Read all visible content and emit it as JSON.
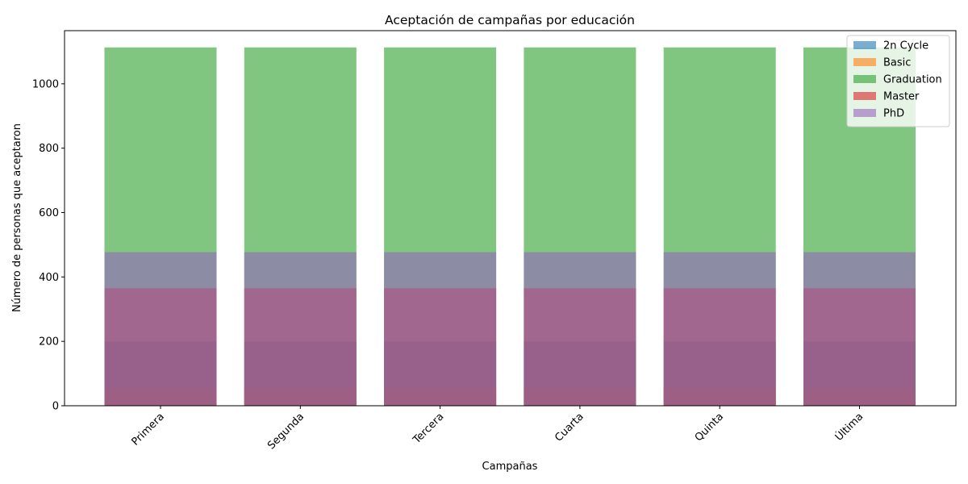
{
  "chart_data": {
    "type": "bar",
    "title": "Aceptación de campañas por educación",
    "xlabel": "Campañas",
    "ylabel": "Número de personas que aceptaron",
    "categories": [
      "Primera",
      "Segunda",
      "Tercera",
      "Cuarta",
      "Quinta",
      "Última"
    ],
    "ylim": [
      0,
      1165
    ],
    "yticks": [
      0,
      200,
      400,
      600,
      800,
      1000
    ],
    "grid": false,
    "legend_position": "top-right",
    "bar_mode": "overlay",
    "bar_opacity": 0.6,
    "series": [
      {
        "name": "2n Cycle",
        "color": "#1f77b4",
        "values": [
          200,
          200,
          200,
          200,
          200,
          200
        ]
      },
      {
        "name": "Basic",
        "color": "#ff7f0e",
        "values": [
          54,
          54,
          54,
          54,
          54,
          54
        ]
      },
      {
        "name": "Graduation",
        "color": "#2ca02c",
        "values": [
          1113,
          1113,
          1113,
          1113,
          1113,
          1113
        ]
      },
      {
        "name": "Master",
        "color": "#d62728",
        "values": [
          365,
          365,
          365,
          365,
          365,
          365
        ]
      },
      {
        "name": "PhD",
        "color": "#9467bd",
        "values": [
          477,
          477,
          477,
          477,
          477,
          477
        ]
      }
    ]
  }
}
